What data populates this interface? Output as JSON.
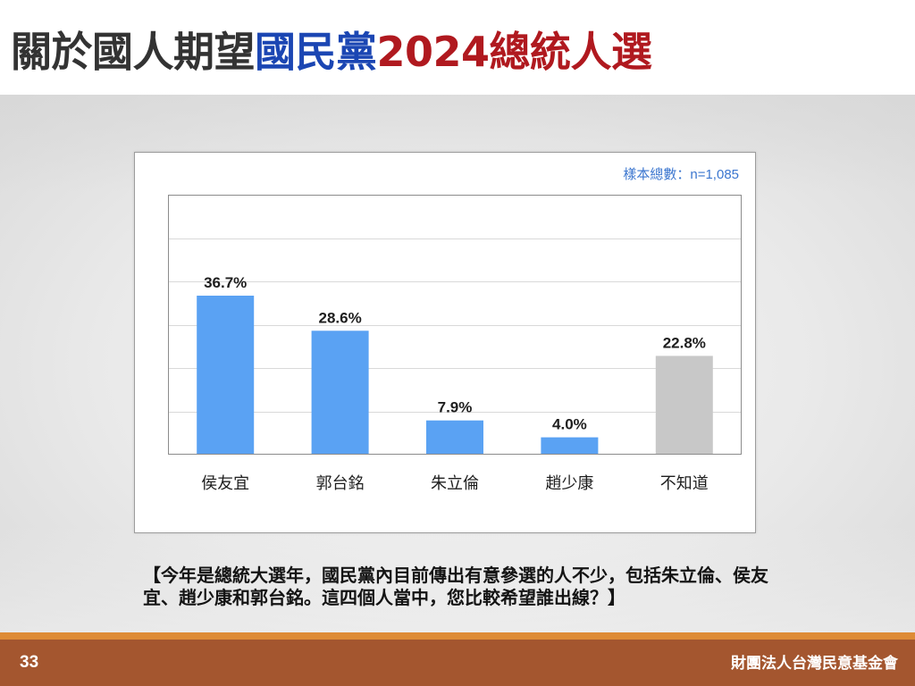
{
  "slide": {
    "title_parts": [
      {
        "text": "關於國人期望",
        "color": "#333333"
      },
      {
        "text": "國民黨",
        "color": "#1b46b3"
      },
      {
        "text": "2024總統人選",
        "color": "#b0191f"
      }
    ],
    "sample_note": "樣本總數：n=1,085",
    "question_lines": [
      "【今年是總統大選年，國民黨內目前傳出有意參選的人不少，包括朱立倫、侯友",
      "宜、趙少康和郭台銘。這四個人當中，您比較希望誰出線？】"
    ],
    "page_number": "33",
    "organization": "財團法人台灣民意基金會",
    "colors": {
      "sample_note": "#3b76cf",
      "footer_strip": "#de8b36",
      "footer_band": "#a4562f"
    }
  },
  "chart_data": {
    "type": "bar",
    "categories": [
      "侯友宜",
      "郭台銘",
      "朱立倫",
      "趙少康",
      "不知道"
    ],
    "values": [
      36.7,
      28.6,
      7.9,
      4.0,
      22.8
    ],
    "value_labels": [
      "36.7%",
      "28.6%",
      "7.9%",
      "4.0%",
      "22.8%"
    ],
    "bar_colors": [
      "#5aa2f3",
      "#5aa2f3",
      "#5aa2f3",
      "#5aa2f3",
      "#c8c8c8"
    ],
    "ylim": [
      0,
      60
    ],
    "grid": true,
    "grid_step": 10
  }
}
